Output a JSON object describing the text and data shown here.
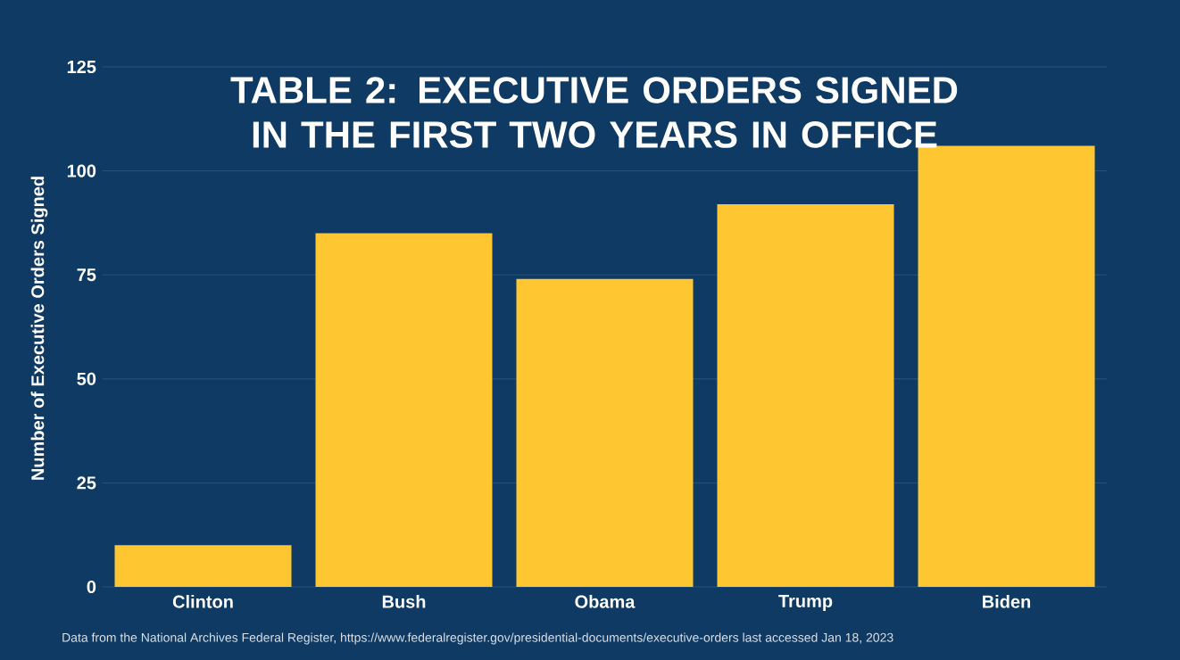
{
  "chart_data": {
    "type": "bar",
    "title": "TABLE 2: EXECUTIVE ORDERS SIGNED IN THE FIRST TWO YEARS IN OFFICE",
    "ylabel": "Number of Executive Orders Signed",
    "categories": [
      "Clinton",
      "Bush",
      "Obama",
      "Trump",
      "Biden"
    ],
    "values": [
      10,
      85,
      74,
      92,
      106
    ],
    "color": "#fec630",
    "ylim": [
      0,
      125
    ],
    "yticks": [
      0,
      25,
      50,
      75,
      100,
      125
    ],
    "grid": "y",
    "annotations": [
      "Data from the National Archives Federal Register, https://www.federalregister.gov/presidential-documents/executive-orders last accessed Jan 18, 2023"
    ]
  }
}
